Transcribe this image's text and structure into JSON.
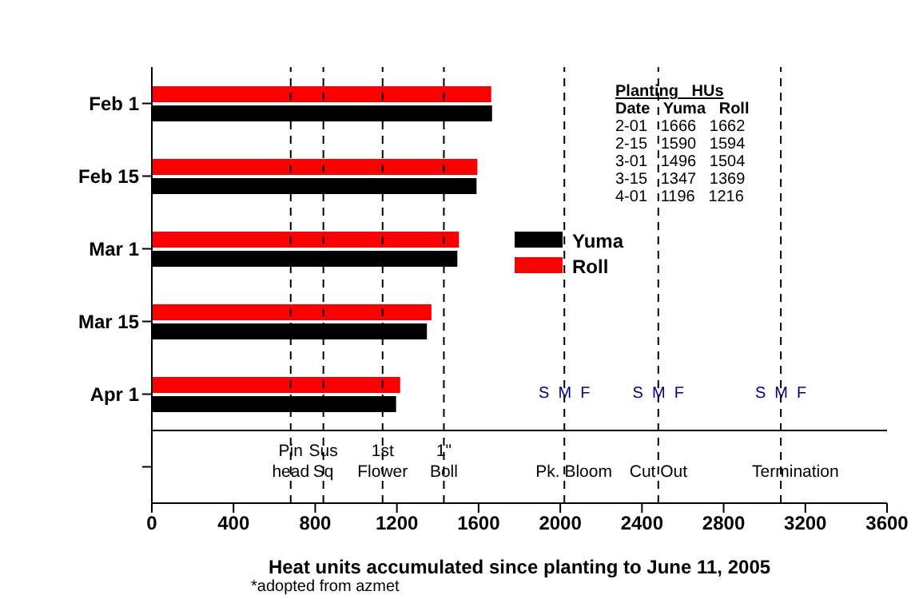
{
  "chart_data": {
    "type": "bar",
    "orientation": "horizontal",
    "xlabel": "Heat units accumulated since planting to June 11, 2005",
    "categories": [
      "Feb 1",
      "Feb 15",
      "Mar 1",
      "Mar 15",
      "Apr 1",
      null
    ],
    "series": [
      {
        "name": "Yuma",
        "color": "#000000",
        "values": [
          1666,
          1590,
          1496,
          1347,
          1196,
          null
        ]
      },
      {
        "name": "Roll",
        "color": "#ff0000",
        "values": [
          1662,
          1594,
          1504,
          1369,
          1216,
          null
        ]
      }
    ],
    "xlim": [
      0,
      3600
    ],
    "xticks": [
      0,
      400,
      800,
      1200,
      1600,
      2000,
      2400,
      2800,
      3200,
      3600
    ],
    "grid": false,
    "legend": "right",
    "ref_lines": [
      {
        "axis": "x",
        "value": 680,
        "label": "Pin\nhead",
        "color": "#000000",
        "line_style": "dashed"
      },
      {
        "axis": "x",
        "value": 840,
        "label": "Sus\nSq",
        "color": "#000000",
        "line_style": "dashed"
      },
      {
        "axis": "x",
        "value": 1130,
        "label": "1st\nFlower",
        "color": "#000000",
        "line_style": "dashed"
      },
      {
        "axis": "x",
        "value": 1430,
        "label": "1\"\nBoll",
        "color": "#000000",
        "line_style": "dashed"
      },
      {
        "axis": "x",
        "value": 2020,
        "label": "Pk. Bloom",
        "color": "#000000",
        "line_style": "dashed"
      },
      {
        "axis": "x",
        "value": 2480,
        "label": "Cut Out",
        "color": "#000000",
        "line_style": "dashed"
      },
      {
        "axis": "x",
        "value": 3080,
        "label": "Termination",
        "color": "#000000",
        "line_style": "dashed"
      }
    ],
    "annotations": [
      "Planting   HUs",
      "Date   Yuma   Roll",
      "2-01   1666   1662",
      "2-15   1590   1594",
      "3-01   1496   1504",
      "3-15   1347   1369",
      "4-01   1196   1216",
      "S  M  F",
      "S  M  F",
      "S  M  F",
      "*adopted from azmet"
    ]
  }
}
